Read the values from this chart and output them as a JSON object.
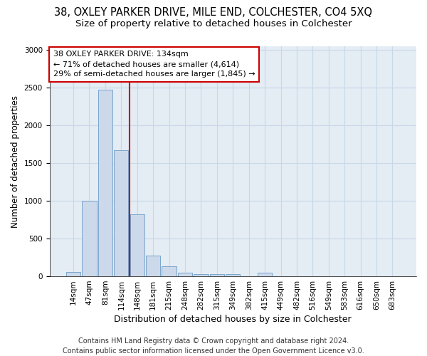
{
  "title": "38, OXLEY PARKER DRIVE, MILE END, COLCHESTER, CO4 5XQ",
  "subtitle": "Size of property relative to detached houses in Colchester",
  "xlabel": "Distribution of detached houses by size in Colchester",
  "ylabel": "Number of detached properties",
  "footer_line1": "Contains HM Land Registry data © Crown copyright and database right 2024.",
  "footer_line2": "Contains public sector information licensed under the Open Government Licence v3.0.",
  "bar_labels": [
    "14sqm",
    "47sqm",
    "81sqm",
    "114sqm",
    "148sqm",
    "181sqm",
    "215sqm",
    "248sqm",
    "282sqm",
    "315sqm",
    "349sqm",
    "382sqm",
    "415sqm",
    "449sqm",
    "482sqm",
    "516sqm",
    "549sqm",
    "583sqm",
    "616sqm",
    "650sqm",
    "683sqm"
  ],
  "bar_values": [
    60,
    1000,
    2470,
    1670,
    820,
    270,
    130,
    50,
    30,
    30,
    30,
    0,
    50,
    0,
    0,
    0,
    0,
    0,
    0,
    0,
    0
  ],
  "bar_color": "#ccd9ea",
  "bar_edge_color": "#7aa6cc",
  "vline_x_index": 3.5,
  "vline_color": "#cc0000",
  "annotation_text": "38 OXLEY PARKER DRIVE: 134sqm\n← 71% of detached houses are smaller (4,614)\n29% of semi-detached houses are larger (1,845) →",
  "annotation_box_color": "white",
  "annotation_box_edge": "#cc0000",
  "ylim": [
    0,
    3050
  ],
  "yticks": [
    0,
    500,
    1000,
    1500,
    2000,
    2500,
    3000
  ],
  "grid_color": "#c8d8e8",
  "bg_color": "#e4ecf4",
  "title_fontsize": 10.5,
  "subtitle_fontsize": 9.5,
  "xlabel_fontsize": 9,
  "ylabel_fontsize": 8.5,
  "tick_fontsize": 7.5,
  "footer_fontsize": 7
}
